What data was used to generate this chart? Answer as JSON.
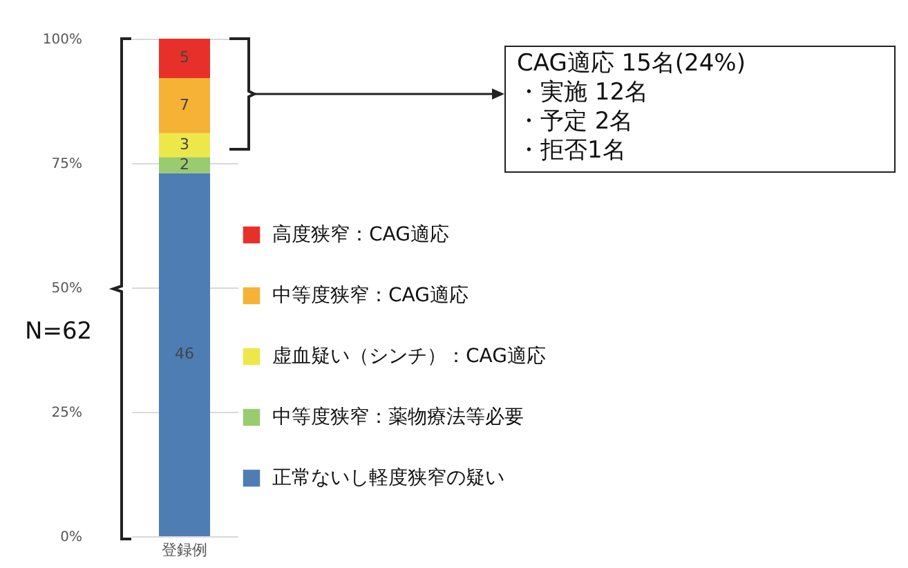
{
  "chart_data": {
    "type": "bar",
    "stacked": true,
    "categories": [
      "登録例"
    ],
    "series": [
      {
        "name": "正常ないし軽度狭窄の疑い",
        "color": "#4e7db4",
        "values": [
          73.0
        ]
      },
      {
        "name": "中等度狭窄：薬物療法等必要",
        "color": "#99cc6e",
        "values": [
          3.2
        ]
      },
      {
        "name": "虚血疑い（シンチ）：CAG適応",
        "color": "#ede84a",
        "values": [
          4.8
        ]
      },
      {
        "name": "中等度狭窄：CAG適応",
        "color": "#f5b234",
        "values": [
          11.1
        ]
      },
      {
        "name": "高度狭窄：CAG適応",
        "color": "#e8302a",
        "values": [
          7.9
        ]
      }
    ],
    "ylim": [
      0,
      100
    ],
    "yticks": [
      {
        "value": 0,
        "label": "0%"
      },
      {
        "value": 25,
        "label": "25%"
      },
      {
        "value": 50,
        "label": "50%"
      },
      {
        "value": 75,
        "label": "75%"
      },
      {
        "value": 100,
        "label": "100%"
      }
    ],
    "grid": "y",
    "legend": "right",
    "annotations": [
      "46",
      "2",
      "3",
      "7",
      "5",
      "N=62",
      "CAG適応 15名(24%)",
      "・実施 12名",
      "・予定 2名",
      "・拒否1名"
    ]
  }
}
